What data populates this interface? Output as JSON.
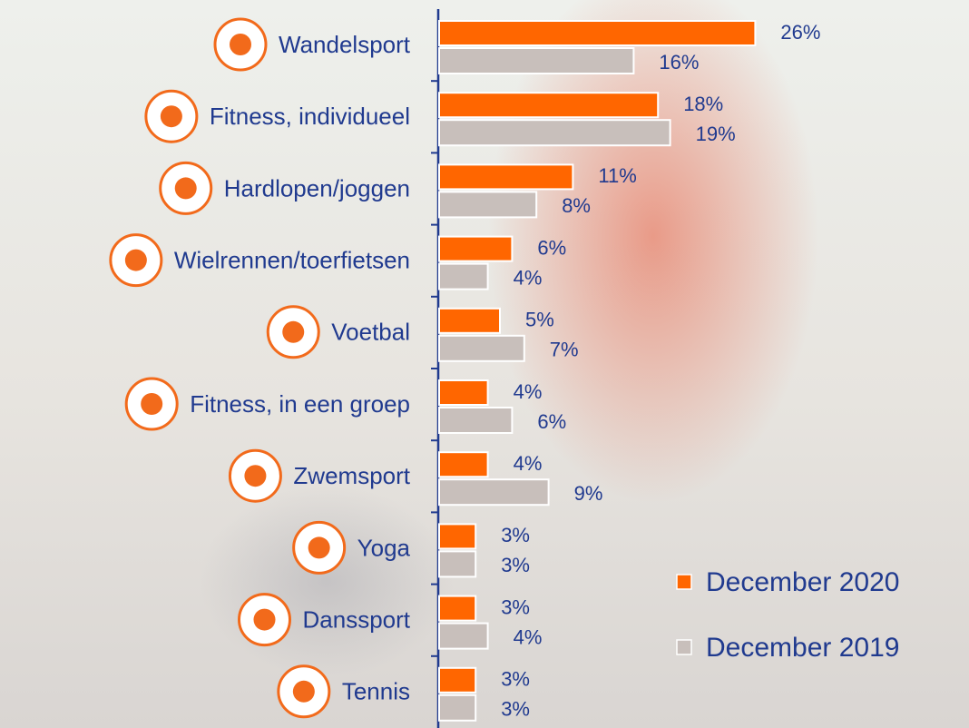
{
  "chart_data": {
    "type": "bar",
    "orientation": "horizontal",
    "categories": [
      "Wandelsport",
      "Fitness, individueel",
      "Hardlopen/joggen",
      "Wielrennen/toerfietsen",
      "Voetbal",
      "Fitness, in een groep",
      "Zwemsport",
      "Yoga",
      "Danssport",
      "Tennis"
    ],
    "series": [
      {
        "name": "December 2020",
        "color": "#ff6600",
        "values": [
          26,
          18,
          11,
          6,
          5,
          4,
          4,
          3,
          3,
          3
        ],
        "value_labels": [
          "26%",
          "18%",
          "11%",
          "6%",
          "5%",
          "4%",
          "4%",
          "3%",
          "3%",
          "3%"
        ]
      },
      {
        "name": "December 2019",
        "color": "#c8bfbb",
        "values": [
          16,
          19,
          8,
          4,
          7,
          6,
          9,
          3,
          4,
          3
        ],
        "value_labels": [
          "16%",
          "19%",
          "8%",
          "4%",
          "7%",
          "6%",
          "9%",
          "3%",
          "4%",
          "3%"
        ]
      }
    ],
    "legend": "lower right"
  }
}
